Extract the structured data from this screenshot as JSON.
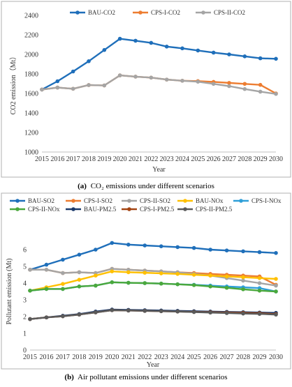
{
  "chart_data": [
    {
      "type": "line",
      "caption_label": "(a)",
      "caption_text": "CO₂ emissions under different scenarios",
      "xlabel": "Year",
      "ylabel": "CO2 emission（Mt）",
      "x": [
        "2015",
        "2016",
        "2017",
        "2018",
        "2019",
        "2020",
        "2021",
        "2022",
        "2023",
        "2024",
        "2025",
        "2026",
        "2027",
        "2028",
        "2029",
        "2030"
      ],
      "ylim": [
        1000,
        2400
      ],
      "yticks": [
        1000,
        1200,
        1400,
        1600,
        1800,
        2000,
        2200,
        2400
      ],
      "legend_position": "top",
      "grid": false,
      "series": [
        {
          "name": "BAU-CO2",
          "color": "#1f6fba",
          "values": [
            1640,
            1725,
            1825,
            1930,
            2045,
            2160,
            2140,
            2118,
            2080,
            2062,
            2040,
            2018,
            2000,
            1980,
            1960,
            1955
          ]
        },
        {
          "name": "CPS-I-CO2",
          "color": "#ed7d31",
          "values": [
            1640,
            1660,
            1648,
            1686,
            1682,
            1785,
            1772,
            1762,
            1742,
            1730,
            1726,
            1718,
            1708,
            1698,
            1688,
            1600
          ]
        },
        {
          "name": "CPS-II-CO2",
          "color": "#a5a5a5",
          "values": [
            1640,
            1660,
            1648,
            1686,
            1682,
            1785,
            1772,
            1762,
            1742,
            1730,
            1720,
            1698,
            1675,
            1645,
            1618,
            1595
          ]
        }
      ]
    },
    {
      "type": "line",
      "caption_label": "(b)",
      "caption_text": "Air pollutant emissions under different scenarios",
      "xlabel": "Year",
      "ylabel": "Pollutant emission (Mt)",
      "x": [
        "2015",
        "2016",
        "2017",
        "2018",
        "2019",
        "2020",
        "2021",
        "2022",
        "2023",
        "2024",
        "2025",
        "2026",
        "2027",
        "2028",
        "2029",
        "2030"
      ],
      "ylim": [
        0,
        7
      ],
      "yticks": [
        0,
        1,
        2,
        3,
        4,
        5,
        6
      ],
      "legend_position": "top",
      "grid": false,
      "series": [
        {
          "name": "BAU-SO2",
          "color": "#1f6fba",
          "values": [
            4.8,
            5.1,
            5.4,
            5.7,
            6.0,
            6.4,
            6.3,
            6.25,
            6.2,
            6.15,
            6.1,
            6.0,
            5.95,
            5.9,
            5.85,
            5.8
          ]
        },
        {
          "name": "CPS-I-SO2",
          "color": "#ed7d31",
          "values": [
            4.8,
            4.8,
            4.6,
            4.65,
            4.6,
            4.85,
            4.8,
            4.75,
            4.7,
            4.65,
            4.6,
            4.55,
            4.5,
            4.45,
            4.4,
            3.9
          ]
        },
        {
          "name": "CPS-II-SO2",
          "color": "#a5a5a5",
          "values": [
            4.8,
            4.8,
            4.6,
            4.65,
            4.6,
            4.85,
            4.8,
            4.75,
            4.7,
            4.65,
            4.55,
            4.45,
            4.3,
            4.15,
            4.0,
            3.85
          ]
        },
        {
          "name": "BAU-NOx",
          "color": "#ffc000",
          "values": [
            3.55,
            3.75,
            3.95,
            4.2,
            4.45,
            4.7,
            4.65,
            4.62,
            4.58,
            4.55,
            4.5,
            4.45,
            4.4,
            4.35,
            4.3,
            4.25
          ]
        },
        {
          "name": "CPS-I-NOx",
          "color": "#2f9fd8",
          "values": [
            3.55,
            3.65,
            3.65,
            3.8,
            3.85,
            4.05,
            4.02,
            4.0,
            3.97,
            3.93,
            3.9,
            3.85,
            3.8,
            3.75,
            3.7,
            3.5
          ]
        },
        {
          "name": "CPS-II-NOx",
          "color": "#4aa83c",
          "values": [
            3.55,
            3.65,
            3.65,
            3.8,
            3.85,
            4.05,
            4.02,
            4.0,
            3.97,
            3.93,
            3.88,
            3.8,
            3.72,
            3.63,
            3.55,
            3.5
          ]
        },
        {
          "name": "BAU-PM2.5",
          "color": "#1b3a6b",
          "values": [
            1.85,
            1.95,
            2.05,
            2.15,
            2.3,
            2.42,
            2.4,
            2.38,
            2.36,
            2.34,
            2.32,
            2.3,
            2.28,
            2.26,
            2.24,
            2.22
          ]
        },
        {
          "name": "CPS-I-PM2.5",
          "color": "#a34412",
          "values": [
            1.85,
            1.95,
            2.02,
            2.12,
            2.25,
            2.38,
            2.36,
            2.34,
            2.32,
            2.3,
            2.28,
            2.26,
            2.24,
            2.22,
            2.2,
            2.15
          ]
        },
        {
          "name": "CPS-II-PM2.5",
          "color": "#5a5a5a",
          "values": [
            1.85,
            1.95,
            2.02,
            2.12,
            2.25,
            2.38,
            2.36,
            2.34,
            2.32,
            2.3,
            2.27,
            2.24,
            2.21,
            2.18,
            2.16,
            2.12
          ]
        }
      ]
    }
  ]
}
